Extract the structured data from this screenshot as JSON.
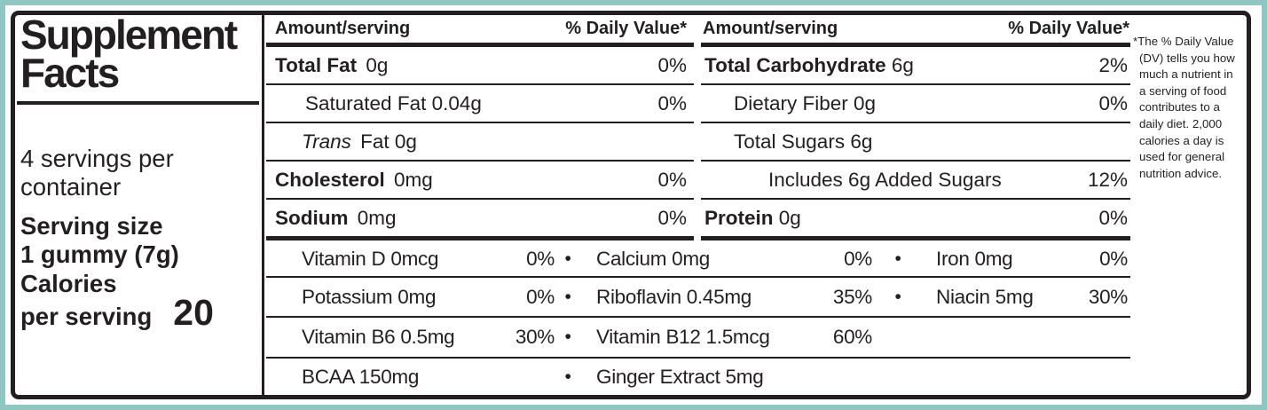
{
  "colors": {
    "frame_accent": "#8ec7c2",
    "ink": "#231f20",
    "background": "#ffffff"
  },
  "panel": {
    "title_line1": "Supplement",
    "title_line2": "Facts",
    "servings_per_container": "4 servings per container",
    "serving_size_label": "Serving size",
    "serving_size_value": "1 gummy (7g)",
    "calories_label_line1": "Calories",
    "calories_label_line2": "per serving",
    "calories_value": "20"
  },
  "table": {
    "header": {
      "amount": "Amount/serving",
      "daily_value": "% Daily Value*"
    },
    "left_rows": [
      {
        "bold": "Total Fat",
        "italic": "",
        "text": " 0g",
        "dv": "0%"
      },
      {
        "bold": "",
        "italic": "",
        "text": "Saturated Fat 0.04g",
        "dv": "0%"
      },
      {
        "bold": "",
        "italic": "Trans",
        "text": " Fat 0g",
        "dv": ""
      },
      {
        "bold": "Cholesterol",
        "italic": "",
        "text": " 0mg",
        "dv": "0%"
      },
      {
        "bold": "Sodium",
        "italic": "",
        "text": " 0mg",
        "dv": "0%"
      }
    ],
    "right_rows": [
      {
        "bold": "Total Carbohydrate",
        "italic": "",
        "text": " 6g",
        "dv": "2%"
      },
      {
        "bold": "",
        "italic": "",
        "text": "Dietary Fiber 0g",
        "dv": "0%"
      },
      {
        "bold": "",
        "italic": "",
        "text": "Total Sugars 6g",
        "dv": ""
      },
      {
        "bold": "",
        "italic": "",
        "text": "Includes 6g Added Sugars",
        "dv": "12%"
      },
      {
        "bold": "Protein",
        "italic": "",
        "text": " 0g",
        "dv": "0%"
      }
    ],
    "micronutrient_rows": [
      {
        "g1": {
          "name": "Vitamin D 0mcg",
          "dv": "0%"
        },
        "b1": "•",
        "g2": {
          "name": "Calcium 0mg",
          "dv": "0%"
        },
        "b2": "•",
        "g3": {
          "name": "Iron 0mg",
          "dv": "0%"
        }
      },
      {
        "g1": {
          "name": "Potassium 0mg",
          "dv": "0%"
        },
        "b1": "•",
        "g2": {
          "name": "Riboflavin 0.45mg",
          "dv": "35%"
        },
        "b2": "•",
        "g3": {
          "name": "Niacin 5mg",
          "dv": "30%"
        }
      },
      {
        "g1": {
          "name": "Vitamin B6 0.5mg",
          "dv": "30%"
        },
        "b1": "•",
        "g2": {
          "name": "Vitamin B12 1.5mcg",
          "dv": "60%"
        },
        "b2": "",
        "g3": {
          "name": "",
          "dv": ""
        }
      },
      {
        "g1": {
          "name": "BCAA 150mg",
          "dv": ""
        },
        "b1": "•",
        "g2": {
          "name": "Ginger Extract 5mg",
          "dv": ""
        },
        "b2": "",
        "g3": {
          "name": "",
          "dv": ""
        }
      }
    ]
  },
  "footnote": {
    "lines": [
      "*The % Daily Value",
      "(DV) tells you how",
      "much a nutrient in",
      "a serving of food",
      "contributes to a",
      "daily diet. 2,000",
      "calories a day is",
      "used for general",
      "nutrition advice."
    ]
  }
}
